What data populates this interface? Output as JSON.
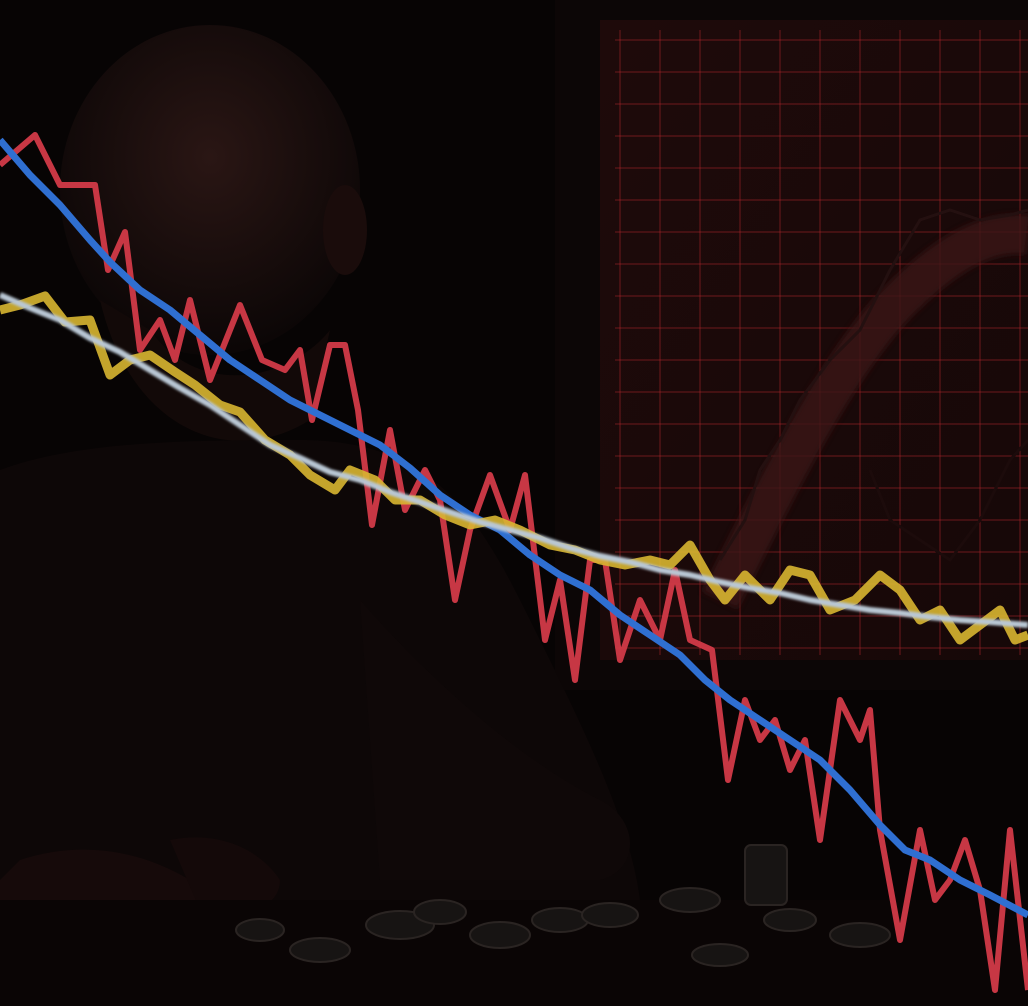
{
  "scene": {
    "subject": "man-with-poker-chips",
    "background_color": "#060303",
    "monitor_glow_color": "#2a0c0c",
    "gridline_color": "#b3262b"
  },
  "overlay_lines": [
    {
      "id": "red-volatile-line",
      "color": "#d23a48"
    },
    {
      "id": "blue-trend-line",
      "color": "#2f6fd1"
    },
    {
      "id": "yellow-line",
      "color": "#d8b631"
    },
    {
      "id": "silver-line",
      "color": "#b9c7d4"
    }
  ]
}
